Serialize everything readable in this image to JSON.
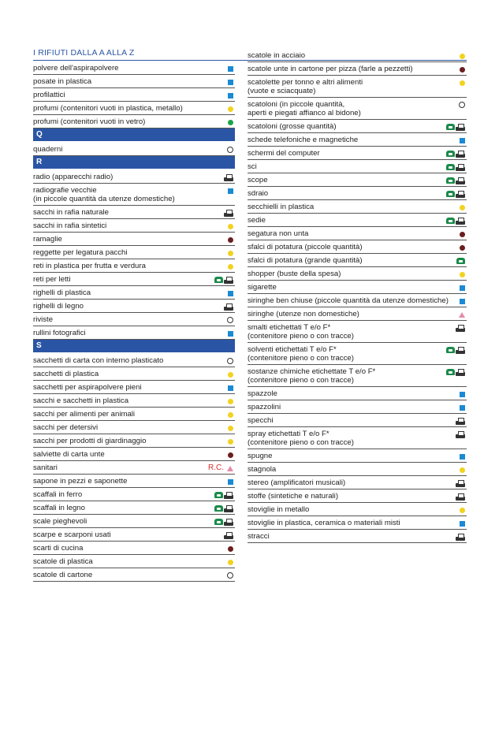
{
  "title": "I RIFIUTI DALLA A ALLA Z",
  "legend_colors": {
    "blue_square": "#1a8ad4",
    "yellow_dot": "#f2d21f",
    "brown_dot": "#6b1e1e",
    "green_dot": "#1aa34a",
    "header": "#2a55a4",
    "rc_red": "#d0302a",
    "pink_triangle": "#e58ba6"
  },
  "left_column": [
    {
      "label": "polvere dell'aspirapolvere",
      "marks": [
        "blue-square-icon"
      ]
    },
    {
      "label": "posate in plastica",
      "marks": [
        "blue-square-icon"
      ]
    },
    {
      "label": "profilattici",
      "marks": [
        "blue-square-icon"
      ]
    },
    {
      "label": "profumi (contenitori vuoti in plastica, metallo)",
      "marks": [
        "yellow-dot-icon"
      ]
    },
    {
      "label": "profumi (contenitori vuoti in vetro)",
      "marks": [
        "green-dot-icon"
      ]
    },
    {
      "header": "Q"
    },
    {
      "label": "quaderni",
      "marks": [
        "white-circle-icon"
      ]
    },
    {
      "header": "R"
    },
    {
      "label": "radio (apparecchi radio)",
      "marks": [
        "ecocenter-icon"
      ]
    },
    {
      "label": "radiografie vecchie\n(in piccole quantità da utenze domestiche)",
      "marks": [
        "blue-square-icon"
      ]
    },
    {
      "label": "sacchi in rafia naturale",
      "marks": [
        "ecocenter-icon"
      ]
    },
    {
      "label": "sacchi in rafia sintetici",
      "marks": [
        "yellow-dot-icon"
      ]
    },
    {
      "label": "ramaglie",
      "marks": [
        "brown-dot-icon"
      ]
    },
    {
      "label": "reggette per legatura pacchi",
      "marks": [
        "yellow-dot-icon"
      ]
    },
    {
      "label": "reti in plastica per frutta e verdura",
      "marks": [
        "yellow-dot-icon"
      ]
    },
    {
      "label": "reti per letti",
      "marks": [
        "phone-icon",
        "ecocenter-icon"
      ]
    },
    {
      "label": "righelli di plastica",
      "marks": [
        "blue-square-icon"
      ]
    },
    {
      "label": "righelli di legno",
      "marks": [
        "ecocenter-icon"
      ]
    },
    {
      "label": "riviste",
      "marks": [
        "white-circle-icon"
      ]
    },
    {
      "label": "rullini fotografici",
      "marks": [
        "blue-square-icon"
      ]
    },
    {
      "header": "S"
    },
    {
      "label": "sacchetti di carta con interno plasticato",
      "marks": [
        "white-circle-icon"
      ]
    },
    {
      "label": "sacchetti di plastica",
      "marks": [
        "yellow-dot-icon"
      ]
    },
    {
      "label": "sacchetti per aspirapolvere pieni",
      "marks": [
        "blue-square-icon"
      ]
    },
    {
      "label": "sacchi e sacchetti in plastica",
      "marks": [
        "yellow-dot-icon"
      ]
    },
    {
      "label": "sacchi per alimenti per animali",
      "marks": [
        "yellow-dot-icon"
      ]
    },
    {
      "label": "sacchi per detersivi",
      "marks": [
        "yellow-dot-icon"
      ]
    },
    {
      "label": "sacchi per prodotti di giardinaggio",
      "marks": [
        "yellow-dot-icon"
      ]
    },
    {
      "label": "salviette di carta unte",
      "marks": [
        "brown-dot-icon"
      ]
    },
    {
      "label": "sanitari",
      "rc": "R.C.",
      "marks": [
        "pink-triangle-icon"
      ]
    },
    {
      "label": "sapone in pezzi e saponette",
      "marks": [
        "blue-square-icon"
      ]
    },
    {
      "label": "scaffali in ferro",
      "marks": [
        "phone-icon",
        "ecocenter-icon"
      ]
    },
    {
      "label": "scaffali in legno",
      "marks": [
        "phone-icon",
        "ecocenter-icon"
      ]
    },
    {
      "label": "scale pieghevoli",
      "marks": [
        "phone-icon",
        "ecocenter-icon"
      ]
    },
    {
      "label": "scarpe e scarponi usati",
      "marks": [
        "ecocenter-icon"
      ]
    },
    {
      "label": "scarti di cucina",
      "marks": [
        "brown-dot-icon"
      ]
    },
    {
      "label": "scatole di plastica",
      "marks": [
        "yellow-dot-icon"
      ]
    },
    {
      "label": "scatole di cartone",
      "marks": [
        "white-circle-icon"
      ]
    }
  ],
  "right_column": [
    {
      "label": "scatole in acciaio",
      "marks": [
        "yellow-dot-icon"
      ]
    },
    {
      "label": "scatole unte in cartone per pizza (farle a pezzetti)",
      "marks": [
        "brown-dot-icon"
      ]
    },
    {
      "label": "scatolette per tonno e altri alimenti\n(vuote e sciacquate)",
      "marks": [
        "yellow-dot-icon"
      ]
    },
    {
      "label": "scatoloni (in piccole quantità,\naperti e piegati affianco al bidone)",
      "marks": [
        "white-circle-icon"
      ]
    },
    {
      "label": "scatoloni (grosse quantità)",
      "marks": [
        "phone-icon",
        "ecocenter-icon"
      ]
    },
    {
      "label": "schede telefoniche e magnetiche",
      "marks": [
        "blue-square-icon"
      ]
    },
    {
      "label": "schermi del computer",
      "marks": [
        "phone-icon",
        "ecocenter-icon"
      ]
    },
    {
      "label": "sci",
      "marks": [
        "phone-icon",
        "ecocenter-icon"
      ]
    },
    {
      "label": "scope",
      "marks": [
        "phone-icon",
        "ecocenter-icon"
      ]
    },
    {
      "label": "sdraio",
      "marks": [
        "phone-icon",
        "ecocenter-icon"
      ]
    },
    {
      "label": "secchielli in plastica",
      "marks": [
        "yellow-dot-icon"
      ]
    },
    {
      "label": "sedie",
      "marks": [
        "phone-icon",
        "ecocenter-icon"
      ]
    },
    {
      "label": "segatura non unta",
      "marks": [
        "brown-dot-icon"
      ]
    },
    {
      "label": "sfalci di potatura (piccole quantità)",
      "marks": [
        "brown-dot-icon"
      ]
    },
    {
      "label": "sfalci di potatura (grande quantità)",
      "marks": [
        "phone-icon"
      ]
    },
    {
      "label": "shopper (buste della spesa)",
      "marks": [
        "yellow-dot-icon"
      ]
    },
    {
      "label": "sigarette",
      "marks": [
        "blue-square-icon"
      ]
    },
    {
      "label": "siringhe ben chiuse (piccole quantità da utenze domestiche)",
      "marks": [
        "blue-square-icon"
      ]
    },
    {
      "label": "siringhe (utenze non domestiche)",
      "marks": [
        "pink-triangle-icon"
      ]
    },
    {
      "label": "smalti etichettati T e/o F*\n(contenitore pieno o con tracce)",
      "marks": [
        "ecocenter-icon"
      ]
    },
    {
      "label": "solventi etichettati T e/o F*\n(contenitore pieno o con tracce)",
      "marks": [
        "phone-icon",
        "ecocenter-icon"
      ]
    },
    {
      "label": "sostanze chimiche etichettate T e/o F*\n(contenitore pieno o con tracce)",
      "marks": [
        "phone-icon",
        "ecocenter-icon"
      ]
    },
    {
      "label": "spazzole",
      "marks": [
        "blue-square-icon"
      ]
    },
    {
      "label": "spazzolini",
      "marks": [
        "blue-square-icon"
      ]
    },
    {
      "label": "specchi",
      "marks": [
        "ecocenter-icon"
      ]
    },
    {
      "label": "spray etichettati T e/o F*\n(contenitore pieno o con tracce)",
      "marks": [
        "ecocenter-icon"
      ]
    },
    {
      "label": "spugne",
      "marks": [
        "blue-square-icon"
      ]
    },
    {
      "label": "stagnola",
      "marks": [
        "yellow-dot-icon"
      ]
    },
    {
      "label": "stereo (amplificatori musicali)",
      "marks": [
        "ecocenter-icon"
      ]
    },
    {
      "label": "stoffe (sintetiche e naturali)",
      "marks": [
        "ecocenter-icon"
      ]
    },
    {
      "label": "stoviglie in metallo",
      "marks": [
        "yellow-dot-icon"
      ]
    },
    {
      "label": "stoviglie in plastica, ceramica o materiali misti",
      "marks": [
        "blue-square-icon"
      ]
    },
    {
      "label": "stracci",
      "marks": [
        "ecocenter-icon"
      ]
    }
  ]
}
